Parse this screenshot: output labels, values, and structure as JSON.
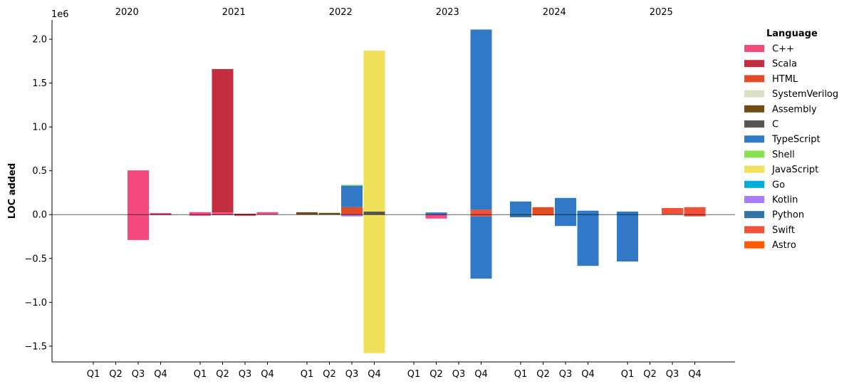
{
  "chart_data": {
    "type": "bar",
    "stacked": true,
    "ylabel": "LOC added",
    "y_offset_label": "1e6",
    "ylim": [
      -1.68,
      2.22
    ],
    "yticks": [
      -1.5,
      -1.0,
      -0.5,
      0.0,
      0.5,
      1.0,
      1.5,
      2.0
    ],
    "ytick_labels": [
      "−1.5",
      "−1.0",
      "−0.5",
      "0.0",
      "0.5",
      "1.0",
      "1.5",
      "2.0"
    ],
    "x_unit_note": "y values in millions of LOC",
    "years": [
      "2020",
      "2021",
      "2022",
      "2023",
      "2024",
      "2025"
    ],
    "quarters": [
      "Q1",
      "Q2",
      "Q3",
      "Q4"
    ],
    "legend": {
      "title": "Language",
      "placement": "right",
      "entries": [
        {
          "name": "C++",
          "color": "#f34b7d"
        },
        {
          "name": "Scala",
          "color": "#c22d40"
        },
        {
          "name": "HTML",
          "color": "#e34c26"
        },
        {
          "name": "SystemVerilog",
          "color": "#dae1c2"
        },
        {
          "name": "Assembly",
          "color": "#6e4c13"
        },
        {
          "name": "C",
          "color": "#555555"
        },
        {
          "name": "TypeScript",
          "color": "#3178c6"
        },
        {
          "name": "Shell",
          "color": "#89e051"
        },
        {
          "name": "JavaScript",
          "color": "#f1e05a"
        },
        {
          "name": "Go",
          "color": "#00add8"
        },
        {
          "name": "Kotlin",
          "color": "#a97bff"
        },
        {
          "name": "Python",
          "color": "#3572a5"
        },
        {
          "name": "Swift",
          "color": "#f05138"
        },
        {
          "name": "Astro",
          "color": "#ff5a03"
        }
      ]
    },
    "bars": [
      {
        "year": "2020",
        "quarter": "Q3",
        "segments": [
          {
            "language": "C++",
            "value": 0.505
          },
          {
            "language": "C++",
            "value": -0.29
          }
        ]
      },
      {
        "year": "2020",
        "quarter": "Q4",
        "segments": [
          {
            "language": "C++",
            "value": 0.018
          },
          {
            "language": "C++",
            "value": -0.004
          }
        ]
      },
      {
        "year": "2021",
        "quarter": "Q1",
        "segments": [
          {
            "language": "C++",
            "value": 0.028
          },
          {
            "language": "C++",
            "value": -0.012
          }
        ]
      },
      {
        "year": "2021",
        "quarter": "Q2",
        "segments": [
          {
            "language": "C++",
            "value": 0.025
          },
          {
            "language": "Scala",
            "value": 1.635
          },
          {
            "language": "C++",
            "value": -0.005
          }
        ]
      },
      {
        "year": "2021",
        "quarter": "Q3",
        "segments": [
          {
            "language": "Scala",
            "value": 0.01
          },
          {
            "language": "Scala",
            "value": -0.012
          }
        ]
      },
      {
        "year": "2021",
        "quarter": "Q4",
        "segments": [
          {
            "language": "C++",
            "value": 0.028
          }
        ]
      },
      {
        "year": "2022",
        "quarter": "Q1",
        "segments": [
          {
            "language": "Assembly",
            "value": 0.027
          }
        ]
      },
      {
        "year": "2022",
        "quarter": "Q2",
        "segments": [
          {
            "language": "Assembly",
            "value": 0.02
          }
        ]
      },
      {
        "year": "2022",
        "quarter": "Q3",
        "segments": [
          {
            "language": "HTML",
            "value": 0.085
          },
          {
            "language": "TypeScript",
            "value": 0.245
          },
          {
            "language": "Shell",
            "value": 0.01
          },
          {
            "language": "Kotlin",
            "value": -0.02
          }
        ]
      },
      {
        "year": "2022",
        "quarter": "Q4",
        "segments": [
          {
            "language": "C",
            "value": 0.035
          },
          {
            "language": "JavaScript",
            "value": 1.835
          },
          {
            "language": "JavaScript",
            "value": -1.58
          }
        ]
      },
      {
        "year": "2023",
        "quarter": "Q2",
        "segments": [
          {
            "language": "TypeScript",
            "value": 0.025
          },
          {
            "language": "C++",
            "value": -0.045
          }
        ]
      },
      {
        "year": "2023",
        "quarter": "Q4",
        "segments": [
          {
            "language": "Swift",
            "value": 0.055
          },
          {
            "language": "TypeScript",
            "value": 2.055
          },
          {
            "language": "Swift",
            "value": -0.02
          },
          {
            "language": "TypeScript",
            "value": -0.71
          }
        ]
      },
      {
        "year": "2024",
        "quarter": "Q1",
        "segments": [
          {
            "language": "TypeScript",
            "value": 0.15
          },
          {
            "language": "Python",
            "value": -0.03
          }
        ]
      },
      {
        "year": "2024",
        "quarter": "Q2",
        "segments": [
          {
            "language": "HTML",
            "value": 0.085
          },
          {
            "language": "HTML",
            "value": -0.01
          }
        ]
      },
      {
        "year": "2024",
        "quarter": "Q3",
        "segments": [
          {
            "language": "TypeScript",
            "value": 0.19
          },
          {
            "language": "TypeScript",
            "value": -0.13
          }
        ]
      },
      {
        "year": "2024",
        "quarter": "Q4",
        "segments": [
          {
            "language": "TypeScript",
            "value": 0.045
          },
          {
            "language": "TypeScript",
            "value": -0.585
          }
        ]
      },
      {
        "year": "2025",
        "quarter": "Q1",
        "segments": [
          {
            "language": "TypeScript",
            "value": 0.035
          },
          {
            "language": "TypeScript",
            "value": -0.535
          }
        ]
      },
      {
        "year": "2025",
        "quarter": "Q3",
        "segments": [
          {
            "language": "Swift",
            "value": 0.075
          }
        ]
      },
      {
        "year": "2025",
        "quarter": "Q4",
        "segments": [
          {
            "language": "Swift",
            "value": 0.085
          },
          {
            "language": "Swift",
            "value": -0.02
          }
        ]
      }
    ]
  }
}
